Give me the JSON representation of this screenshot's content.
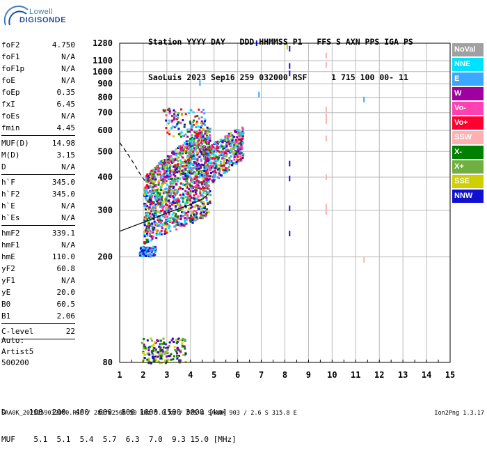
{
  "logo": {
    "line1": "Lowell",
    "line2": "DIGISONDE"
  },
  "header": {
    "labels": "Station YYYY DAY   DDD HHMMSS P1   FFS S AXN PPS IGA PS",
    "values": "SaoLuis 2023 Sep16 259 032000 RSF     1 715 100 00- 11"
  },
  "params_group1": [
    {
      "name": "foF2",
      "value": "4.750"
    },
    {
      "name": "foF1",
      "value": "N/A"
    },
    {
      "name": "foF1p",
      "value": "N/A"
    },
    {
      "name": "foE",
      "value": "N/A"
    },
    {
      "name": "foEp",
      "value": "0.35"
    },
    {
      "name": "fxI",
      "value": "6.45"
    },
    {
      "name": "foEs",
      "value": "N/A"
    },
    {
      "name": "fmin",
      "value": "4.45"
    }
  ],
  "params_group2": [
    {
      "name": "MUF(D)",
      "value": "14.98"
    },
    {
      "name": "M(D)",
      "value": "3.15"
    },
    {
      "name": "D",
      "value": "N/A"
    }
  ],
  "params_group3": [
    {
      "name": "h`F",
      "value": "345.0"
    },
    {
      "name": "h`F2",
      "value": "345.0"
    },
    {
      "name": "h`E",
      "value": "N/A"
    },
    {
      "name": "h`Es",
      "value": "N/A"
    }
  ],
  "params_group4": [
    {
      "name": "hmF2",
      "value": "339.1"
    },
    {
      "name": "hmF1",
      "value": "N/A"
    },
    {
      "name": "hmE",
      "value": "110.0"
    },
    {
      "name": "yF2",
      "value": "60.8"
    },
    {
      "name": "yF1",
      "value": "N/A"
    },
    {
      "name": "yE",
      "value": "20.0"
    },
    {
      "name": "B0",
      "value": "60.5"
    },
    {
      "name": "B1",
      "value": "2.06"
    }
  ],
  "params_group5": [
    {
      "name": "C-level",
      "value": "22"
    }
  ],
  "auto": {
    "line1": "Auto:",
    "line2": "Artist5",
    "line3": "500200"
  },
  "legend": [
    {
      "label": "NoVal",
      "color": "#a0a0a0"
    },
    {
      "label": "NNE",
      "color": "#00e0ff"
    },
    {
      "label": "E",
      "color": "#3aa8ff"
    },
    {
      "label": "W",
      "color": "#a000a0"
    },
    {
      "label": "Vo-",
      "color": "#ff40b0"
    },
    {
      "label": "Vo+",
      "color": "#ff0030"
    },
    {
      "label": "SSW",
      "color": "#ffb0b0"
    },
    {
      "label": "X-",
      "color": "#008000"
    },
    {
      "label": "X+",
      "color": "#70b040"
    },
    {
      "label": "SSE",
      "color": "#d0d000"
    },
    {
      "label": "NNW",
      "color": "#1010d0"
    }
  ],
  "bottom": {
    "d_row": "D     100  200  400  600  800 1000 1500 3000 [km]",
    "muf_row": "MUF    5.1  5.1  5.4  5.7  6.3  7.0  9.3 15.0 [MHz]"
  },
  "footer": {
    "left": "SAA0K_2023259032000.RSF / 280fx256h 50 kHz 5.0 km / DPS-4 SAA0K 903 / 2.6 S 315.8 E",
    "right": "Ion2Png 1.3.17"
  },
  "chart_data": {
    "type": "scatter",
    "title": "",
    "xlabel": "",
    "ylabel": "",
    "xlim": [
      1,
      15
    ],
    "ylim": [
      80,
      1280
    ],
    "grid": true,
    "x_ticks": [
      1,
      2,
      3,
      4,
      5,
      6,
      7,
      8,
      9,
      10,
      11,
      12,
      13,
      14,
      15
    ],
    "y_ticks": [
      80,
      200,
      300,
      400,
      500,
      600,
      700,
      800,
      900,
      1000,
      1100,
      1280
    ],
    "y_scale": "log",
    "series": [
      {
        "name": "NNW",
        "color": "#1010d0",
        "points": [
          [
            8.2,
            1220
          ],
          [
            8.2,
            1050
          ],
          [
            8.2,
            985
          ],
          [
            8.2,
            450
          ],
          [
            8.2,
            395
          ],
          [
            8.2,
            305
          ],
          [
            8.2,
            245
          ],
          [
            6.8,
            1280
          ]
        ]
      },
      {
        "name": "SSW",
        "color": "#ffb0b0",
        "points": [
          [
            9.75,
            1150
          ],
          [
            9.75,
            1060
          ],
          [
            9.75,
            720
          ],
          [
            9.75,
            680
          ],
          [
            9.75,
            650
          ],
          [
            9.75,
            560
          ],
          [
            9.75,
            400
          ],
          [
            9.75,
            310
          ],
          [
            9.75,
            295
          ],
          [
            11.35,
            195
          ]
        ]
      },
      {
        "name": "E",
        "color": "#3aa8ff",
        "points": [
          [
            4.4,
            905
          ],
          [
            6.9,
            820
          ],
          [
            11.35,
            785
          ]
        ]
      },
      {
        "name": "SSE",
        "color": "#d0d000",
        "points": [
          [
            8.1,
            1240
          ]
        ]
      }
    ],
    "curves": [
      {
        "name": "virtual-height-profile",
        "style": "solid",
        "points": [
          [
            1.0,
            250
          ],
          [
            2.0,
            270
          ],
          [
            3.0,
            293
          ],
          [
            4.0,
            315
          ],
          [
            4.5,
            330
          ],
          [
            4.75,
            345
          ]
        ]
      },
      {
        "name": "true-height-profile",
        "style": "dashed",
        "points": [
          [
            1.0,
            540
          ],
          [
            1.2,
            510
          ],
          [
            1.4,
            480
          ],
          [
            1.6,
            450
          ],
          [
            1.8,
            420
          ],
          [
            2.0,
            395
          ],
          [
            2.1,
            385
          ]
        ]
      }
    ]
  }
}
